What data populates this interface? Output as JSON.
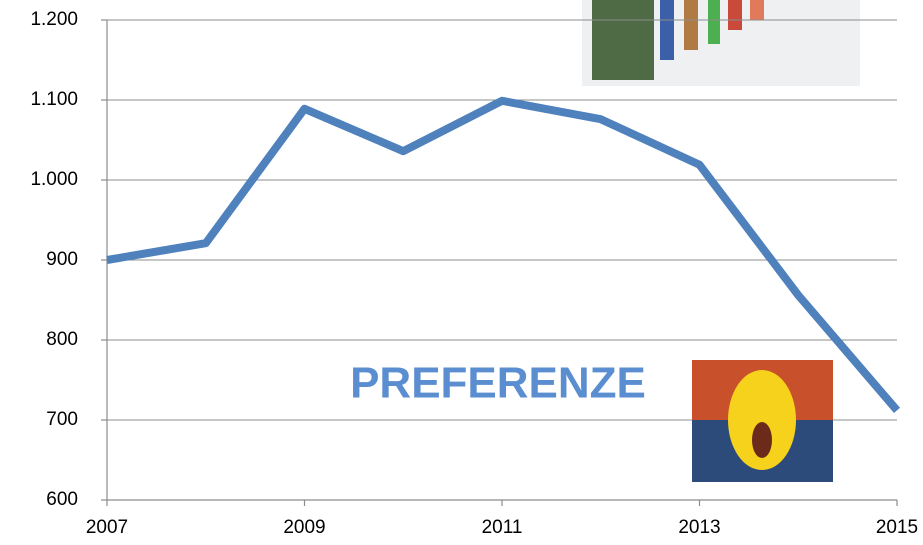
{
  "chart_data": {
    "type": "line",
    "x": [
      2007,
      2008,
      2009,
      2010,
      2011,
      2012,
      2013,
      2014,
      2015
    ],
    "series": [
      {
        "color": "#4f81bd",
        "values": [
          900,
          921,
          1089,
          1036,
          1099,
          1076,
          1019,
          856,
          712
        ]
      }
    ],
    "xlim": [
      2007,
      2015
    ],
    "xticks": [
      2007,
      2009,
      2011,
      2013,
      2015
    ],
    "ylim": [
      600,
      1200
    ],
    "yticks": [
      600,
      700,
      800,
      900,
      {
        "value": 1000,
        "label": "1.000"
      },
      {
        "value": 1100,
        "label": "1.100"
      },
      {
        "value": 1200,
        "label": "1.200"
      }
    ],
    "grid": true,
    "annotation": "PREFERENZE"
  }
}
